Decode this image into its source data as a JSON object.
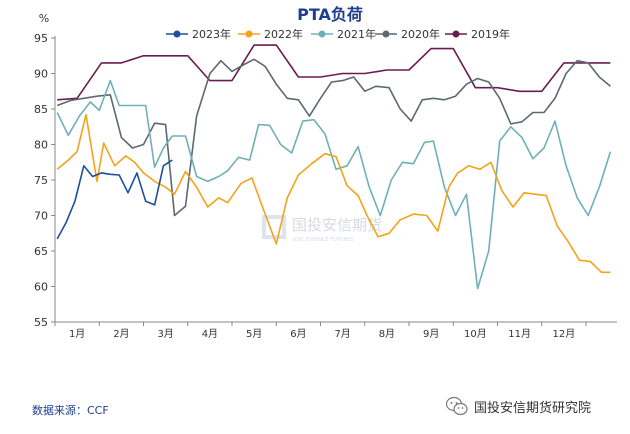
{
  "chart_data": {
    "type": "line",
    "title": "PTA负荷",
    "ylabel": "%",
    "xlabel": "",
    "ylim": [
      55,
      95
    ],
    "yticks": [
      55,
      60,
      65,
      70,
      75,
      80,
      85,
      90,
      95
    ],
    "xlim": [
      0.5,
      13.2
    ],
    "month_labels": [
      "1月",
      "2月",
      "3月",
      "4月",
      "5月",
      "6月",
      "7月",
      "8月",
      "9月",
      "10月",
      "11月",
      "12月"
    ],
    "legend_position": "top",
    "series": [
      {
        "name": "2023年",
        "color": "#1f4e9c",
        "x": [
          0.55,
          0.75,
          0.95,
          1.15,
          1.35,
          1.55,
          1.75,
          1.95,
          2.15,
          2.35,
          2.55,
          2.75,
          2.95,
          3.15
        ],
        "y": [
          66.7,
          69.0,
          72.0,
          77.0,
          75.5,
          76.0,
          75.8,
          75.7,
          73.2,
          76.0,
          72.0,
          71.5,
          77.0,
          77.8
        ]
      },
      {
        "name": "2022年",
        "color": "#f5a21b",
        "x": [
          0.55,
          0.8,
          1.0,
          1.2,
          1.45,
          1.6,
          1.85,
          2.1,
          2.3,
          2.5,
          2.75,
          3.0,
          3.2,
          3.45,
          3.7,
          3.95,
          4.2,
          4.4,
          4.7,
          4.95,
          5.2,
          5.5,
          5.75,
          6.0,
          6.3,
          6.6,
          6.85,
          7.1,
          7.35,
          7.55,
          7.8,
          8.05,
          8.3,
          8.6,
          8.9,
          9.15,
          9.4,
          9.6,
          9.85,
          10.1,
          10.35,
          10.6,
          10.85,
          11.1,
          11.35,
          11.6,
          11.85,
          12.1,
          12.35,
          12.6,
          12.85,
          13.05
        ],
        "y": [
          76.5,
          77.8,
          79.0,
          84.2,
          74.8,
          80.2,
          77.0,
          78.4,
          77.5,
          76.0,
          74.8,
          74.0,
          73.0,
          76.2,
          74.0,
          71.2,
          72.5,
          71.8,
          74.5,
          75.3,
          71.0,
          66.0,
          72.5,
          75.7,
          77.3,
          78.7,
          78.3,
          74.2,
          72.8,
          70.0,
          67.0,
          67.5,
          69.4,
          70.2,
          70.0,
          67.8,
          74.0,
          76.0,
          77.0,
          76.5,
          77.5,
          73.5,
          71.2,
          73.2,
          73.0,
          72.8,
          68.5,
          66.3,
          63.7,
          63.5,
          62.0,
          62.0
        ]
      },
      {
        "name": "2021年",
        "color": "#6fb0b8",
        "x": [
          0.55,
          0.8,
          1.05,
          1.3,
          1.5,
          1.75,
          1.95,
          2.15,
          2.35,
          2.55,
          2.75,
          2.95,
          3.15,
          3.45,
          3.7,
          3.95,
          4.2,
          4.4,
          4.65,
          4.9,
          5.1,
          5.35,
          5.6,
          5.85,
          6.1,
          6.35,
          6.6,
          6.85,
          7.1,
          7.35,
          7.6,
          7.85,
          8.1,
          8.35,
          8.6,
          8.85,
          9.05,
          9.3,
          9.55,
          9.8,
          10.05,
          10.3,
          10.55,
          10.8,
          11.05,
          11.3,
          11.55,
          11.8,
          12.05,
          12.3,
          12.55,
          12.8,
          13.05
        ],
        "y": [
          84.5,
          81.3,
          84.0,
          86.0,
          84.8,
          89.0,
          85.5,
          85.5,
          85.5,
          85.5,
          76.8,
          79.5,
          81.2,
          81.2,
          75.5,
          74.8,
          75.5,
          76.3,
          78.2,
          77.8,
          82.8,
          82.7,
          80.0,
          78.8,
          83.3,
          83.5,
          81.5,
          76.5,
          77.0,
          79.7,
          74.0,
          70.0,
          75.0,
          77.5,
          77.3,
          80.3,
          80.5,
          74.0,
          70.0,
          73.0,
          59.7,
          65.0,
          80.5,
          82.5,
          81.0,
          78.0,
          79.5,
          83.3,
          77.0,
          72.5,
          70.0,
          74.0,
          79.0
        ]
      },
      {
        "name": "2020年",
        "color": "#5c6973",
        "x": [
          0.55,
          0.85,
          1.15,
          1.45,
          1.75,
          2.0,
          2.25,
          2.5,
          2.75,
          3.0,
          3.2,
          3.45,
          3.7,
          4.0,
          4.25,
          4.5,
          4.75,
          5.0,
          5.25,
          5.5,
          5.75,
          6.0,
          6.25,
          6.5,
          6.75,
          7.0,
          7.25,
          7.5,
          7.75,
          8.05,
          8.3,
          8.55,
          8.8,
          9.05,
          9.3,
          9.55,
          9.8,
          10.05,
          10.3,
          10.55,
          10.8,
          11.05,
          11.3,
          11.55,
          11.8,
          12.05,
          12.3,
          12.55,
          12.8,
          13.05
        ],
        "y": [
          85.5,
          86.2,
          86.5,
          86.8,
          87.0,
          81.0,
          79.5,
          80.0,
          83.0,
          82.8,
          70.0,
          71.3,
          84.0,
          90.0,
          91.8,
          90.3,
          91.2,
          92.0,
          91.0,
          88.5,
          86.5,
          86.3,
          84.0,
          86.5,
          88.8,
          89.0,
          89.5,
          87.5,
          88.2,
          88.0,
          85.0,
          83.3,
          86.3,
          86.5,
          86.3,
          86.8,
          88.5,
          89.3,
          88.8,
          86.5,
          82.9,
          83.2,
          84.5,
          84.5,
          86.5,
          90.0,
          91.8,
          91.5,
          89.5,
          88.2
        ]
      },
      {
        "name": "2019年",
        "color": "#6b1c4f",
        "x": [
          0.55,
          1.0,
          1.55,
          2.0,
          2.5,
          3.0,
          3.5,
          4.0,
          4.5,
          5.0,
          5.5,
          6.0,
          6.5,
          7.0,
          7.5,
          8.0,
          8.5,
          9.0,
          9.5,
          10.0,
          10.5,
          11.0,
          11.5,
          12.0,
          12.5,
          13.05
        ],
        "y": [
          86.3,
          86.5,
          91.5,
          91.5,
          92.5,
          92.5,
          92.5,
          89.0,
          89.0,
          94.0,
          94.0,
          89.5,
          89.5,
          90.0,
          90.0,
          90.5,
          90.5,
          93.5,
          93.5,
          88.0,
          88.0,
          87.5,
          87.5,
          91.5,
          91.5,
          91.5
        ]
      }
    ]
  },
  "watermark": {
    "text": "国投安信期货",
    "subtext": "SDIC ESSENCE FUTURES"
  },
  "source": "数据来源：CCF",
  "brand": {
    "name": "国投安信期货研究院",
    "icon": "wechat-icon"
  }
}
